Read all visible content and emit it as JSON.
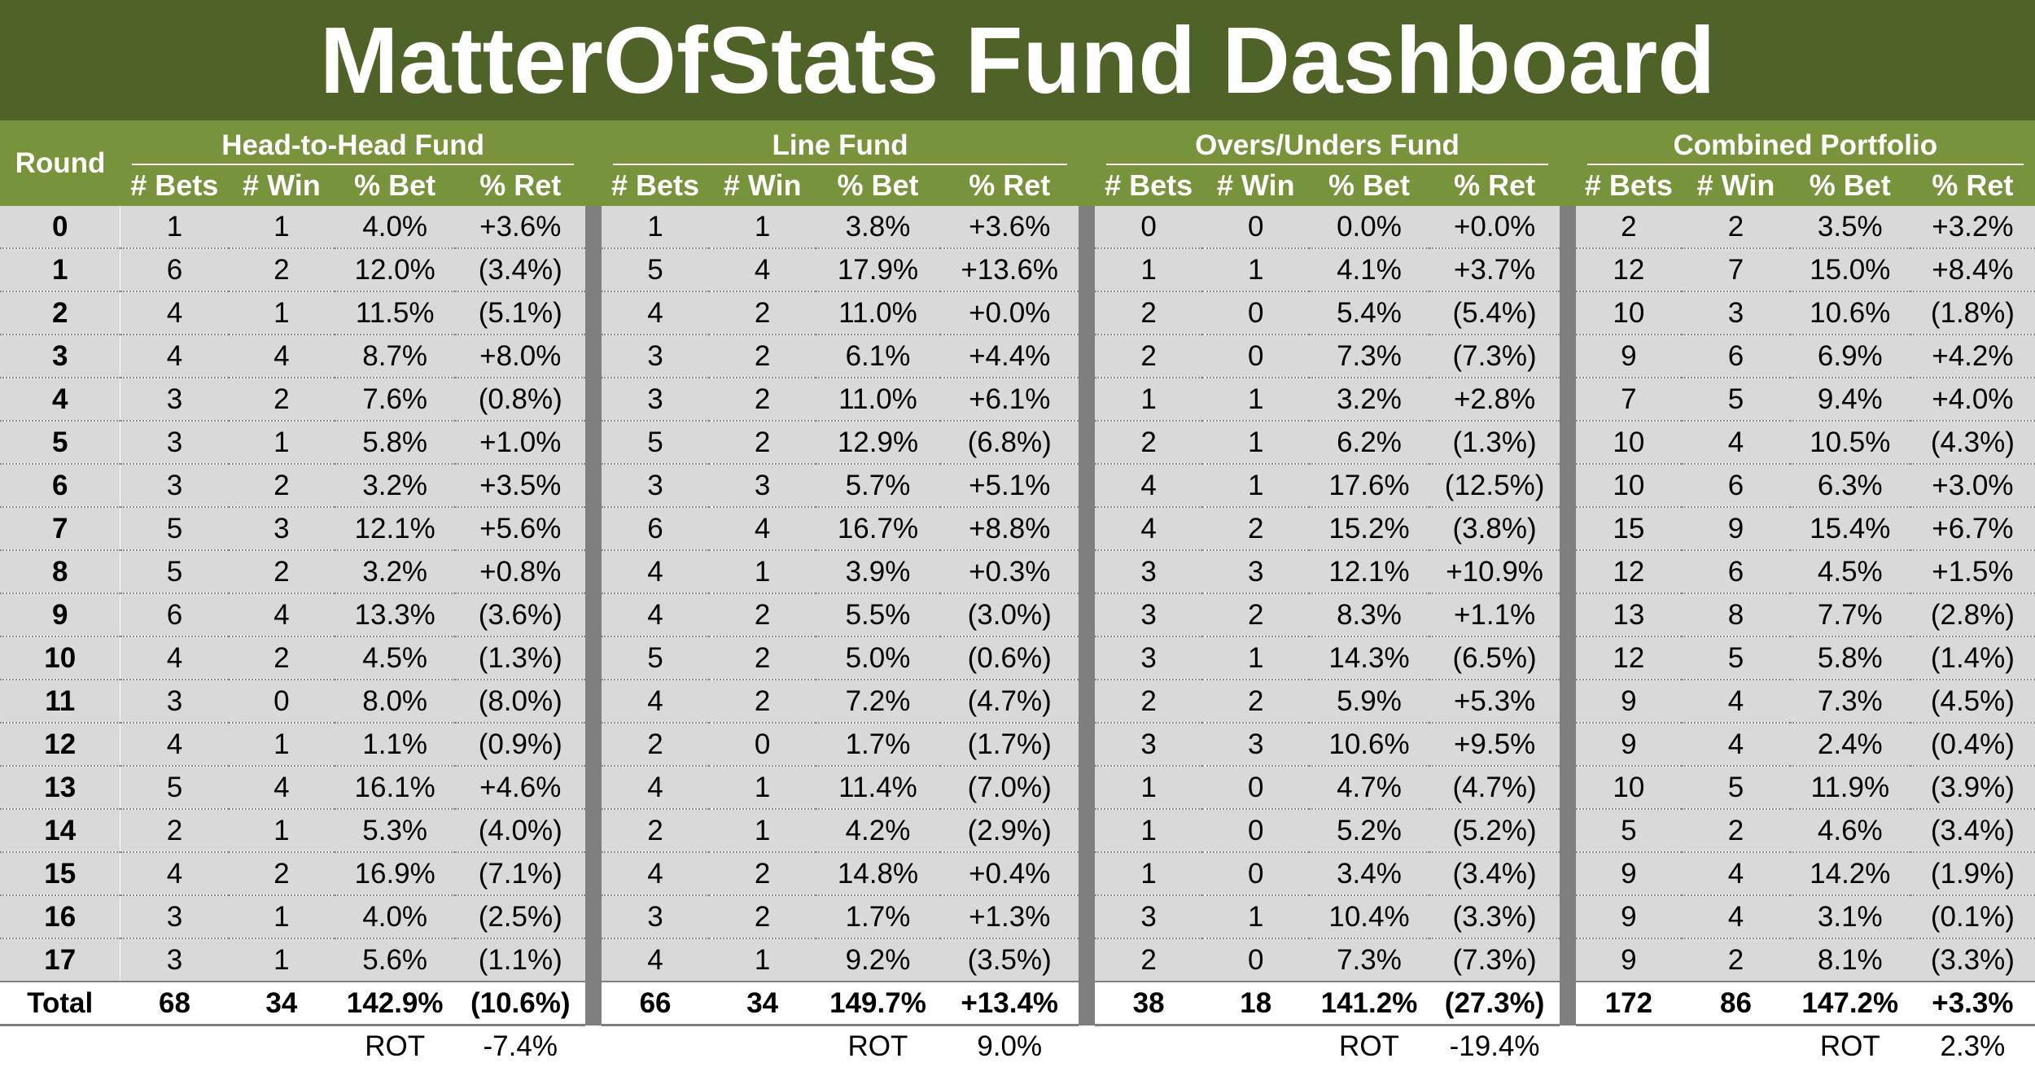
{
  "title": "MatterOfStats Fund Dashboard",
  "round_header": "Round",
  "funds": [
    {
      "name": "Head-to-Head Fund",
      "rot_label": "ROT",
      "rot_value": "-7.4%"
    },
    {
      "name": "Line Fund",
      "rot_label": "ROT",
      "rot_value": "9.0%"
    },
    {
      "name": "Overs/Unders Fund",
      "rot_label": "ROT",
      "rot_value": "-19.4%"
    },
    {
      "name": "Combined Portfolio",
      "rot_label": "ROT",
      "rot_value": "2.3%"
    }
  ],
  "columns": [
    "# Bets",
    "# Win",
    "% Bet",
    "% Ret"
  ],
  "rows": [
    {
      "round": "0",
      "cells": [
        [
          "1",
          "1",
          "4.0%",
          "+3.6%"
        ],
        [
          "1",
          "1",
          "3.8%",
          "+3.6%"
        ],
        [
          "0",
          "0",
          "0.0%",
          "+0.0%"
        ],
        [
          "2",
          "2",
          "3.5%",
          "+3.2%"
        ]
      ]
    },
    {
      "round": "1",
      "cells": [
        [
          "6",
          "2",
          "12.0%",
          "(3.4%)"
        ],
        [
          "5",
          "4",
          "17.9%",
          "+13.6%"
        ],
        [
          "1",
          "1",
          "4.1%",
          "+3.7%"
        ],
        [
          "12",
          "7",
          "15.0%",
          "+8.4%"
        ]
      ]
    },
    {
      "round": "2",
      "cells": [
        [
          "4",
          "1",
          "11.5%",
          "(5.1%)"
        ],
        [
          "4",
          "2",
          "11.0%",
          "+0.0%"
        ],
        [
          "2",
          "0",
          "5.4%",
          "(5.4%)"
        ],
        [
          "10",
          "3",
          "10.6%",
          "(1.8%)"
        ]
      ]
    },
    {
      "round": "3",
      "cells": [
        [
          "4",
          "4",
          "8.7%",
          "+8.0%"
        ],
        [
          "3",
          "2",
          "6.1%",
          "+4.4%"
        ],
        [
          "2",
          "0",
          "7.3%",
          "(7.3%)"
        ],
        [
          "9",
          "6",
          "6.9%",
          "+4.2%"
        ]
      ]
    },
    {
      "round": "4",
      "cells": [
        [
          "3",
          "2",
          "7.6%",
          "(0.8%)"
        ],
        [
          "3",
          "2",
          "11.0%",
          "+6.1%"
        ],
        [
          "1",
          "1",
          "3.2%",
          "+2.8%"
        ],
        [
          "7",
          "5",
          "9.4%",
          "+4.0%"
        ]
      ]
    },
    {
      "round": "5",
      "cells": [
        [
          "3",
          "1",
          "5.8%",
          "+1.0%"
        ],
        [
          "5",
          "2",
          "12.9%",
          "(6.8%)"
        ],
        [
          "2",
          "1",
          "6.2%",
          "(1.3%)"
        ],
        [
          "10",
          "4",
          "10.5%",
          "(4.3%)"
        ]
      ]
    },
    {
      "round": "6",
      "cells": [
        [
          "3",
          "2",
          "3.2%",
          "+3.5%"
        ],
        [
          "3",
          "3",
          "5.7%",
          "+5.1%"
        ],
        [
          "4",
          "1",
          "17.6%",
          "(12.5%)"
        ],
        [
          "10",
          "6",
          "6.3%",
          "+3.0%"
        ]
      ]
    },
    {
      "round": "7",
      "cells": [
        [
          "5",
          "3",
          "12.1%",
          "+5.6%"
        ],
        [
          "6",
          "4",
          "16.7%",
          "+8.8%"
        ],
        [
          "4",
          "2",
          "15.2%",
          "(3.8%)"
        ],
        [
          "15",
          "9",
          "15.4%",
          "+6.7%"
        ]
      ]
    },
    {
      "round": "8",
      "cells": [
        [
          "5",
          "2",
          "3.2%",
          "+0.8%"
        ],
        [
          "4",
          "1",
          "3.9%",
          "+0.3%"
        ],
        [
          "3",
          "3",
          "12.1%",
          "+10.9%"
        ],
        [
          "12",
          "6",
          "4.5%",
          "+1.5%"
        ]
      ]
    },
    {
      "round": "9",
      "cells": [
        [
          "6",
          "4",
          "13.3%",
          "(3.6%)"
        ],
        [
          "4",
          "2",
          "5.5%",
          "(3.0%)"
        ],
        [
          "3",
          "2",
          "8.3%",
          "+1.1%"
        ],
        [
          "13",
          "8",
          "7.7%",
          "(2.8%)"
        ]
      ]
    },
    {
      "round": "10",
      "cells": [
        [
          "4",
          "2",
          "4.5%",
          "(1.3%)"
        ],
        [
          "5",
          "2",
          "5.0%",
          "(0.6%)"
        ],
        [
          "3",
          "1",
          "14.3%",
          "(6.5%)"
        ],
        [
          "12",
          "5",
          "5.8%",
          "(1.4%)"
        ]
      ]
    },
    {
      "round": "11",
      "cells": [
        [
          "3",
          "0",
          "8.0%",
          "(8.0%)"
        ],
        [
          "4",
          "2",
          "7.2%",
          "(4.7%)"
        ],
        [
          "2",
          "2",
          "5.9%",
          "+5.3%"
        ],
        [
          "9",
          "4",
          "7.3%",
          "(4.5%)"
        ]
      ]
    },
    {
      "round": "12",
      "cells": [
        [
          "4",
          "1",
          "1.1%",
          "(0.9%)"
        ],
        [
          "2",
          "0",
          "1.7%",
          "(1.7%)"
        ],
        [
          "3",
          "3",
          "10.6%",
          "+9.5%"
        ],
        [
          "9",
          "4",
          "2.4%",
          "(0.4%)"
        ]
      ]
    },
    {
      "round": "13",
      "cells": [
        [
          "5",
          "4",
          "16.1%",
          "+4.6%"
        ],
        [
          "4",
          "1",
          "11.4%",
          "(7.0%)"
        ],
        [
          "1",
          "0",
          "4.7%",
          "(4.7%)"
        ],
        [
          "10",
          "5",
          "11.9%",
          "(3.9%)"
        ]
      ]
    },
    {
      "round": "14",
      "cells": [
        [
          "2",
          "1",
          "5.3%",
          "(4.0%)"
        ],
        [
          "2",
          "1",
          "4.2%",
          "(2.9%)"
        ],
        [
          "1",
          "0",
          "5.2%",
          "(5.2%)"
        ],
        [
          "5",
          "2",
          "4.6%",
          "(3.4%)"
        ]
      ]
    },
    {
      "round": "15",
      "cells": [
        [
          "4",
          "2",
          "16.9%",
          "(7.1%)"
        ],
        [
          "4",
          "2",
          "14.8%",
          "+0.4%"
        ],
        [
          "1",
          "0",
          "3.4%",
          "(3.4%)"
        ],
        [
          "9",
          "4",
          "14.2%",
          "(1.9%)"
        ]
      ]
    },
    {
      "round": "16",
      "cells": [
        [
          "3",
          "1",
          "4.0%",
          "(2.5%)"
        ],
        [
          "3",
          "2",
          "1.7%",
          "+1.3%"
        ],
        [
          "3",
          "1",
          "10.4%",
          "(3.3%)"
        ],
        [
          "9",
          "4",
          "3.1%",
          "(0.1%)"
        ]
      ]
    },
    {
      "round": "17",
      "cells": [
        [
          "3",
          "1",
          "5.6%",
          "(1.1%)"
        ],
        [
          "4",
          "1",
          "9.2%",
          "(3.5%)"
        ],
        [
          "2",
          "0",
          "7.3%",
          "(7.3%)"
        ],
        [
          "9",
          "2",
          "8.1%",
          "(3.3%)"
        ]
      ]
    }
  ],
  "total": {
    "round": "Total",
    "cells": [
      [
        "68",
        "34",
        "142.9%",
        "(10.6%)"
      ],
      [
        "66",
        "34",
        "149.7%",
        "+13.4%"
      ],
      [
        "38",
        "18",
        "141.2%",
        "(27.3%)"
      ],
      [
        "172",
        "86",
        "147.2%",
        "+3.3%"
      ]
    ]
  },
  "colors": {
    "title_bg": "#4f6228",
    "header_bg": "#77933c",
    "row_bg": "#d9d9d9",
    "separator": "#7f7f7f",
    "negative": "#ff0000"
  }
}
